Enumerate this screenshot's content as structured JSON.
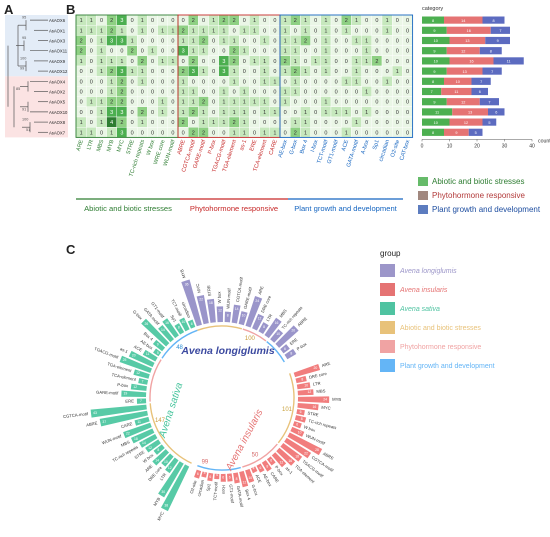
{
  "panel_labels": {
    "a": "A",
    "b": "B",
    "c": "C"
  },
  "tree": {
    "genes": [
      "AsAOX6",
      "AsAOX1",
      "AsAOX3",
      "AsAOX11",
      "AsAOX9",
      "AsAOX12",
      "AsAOX4",
      "AsAOX2",
      "AsAOX5",
      "AsAOX10",
      "AsAOX8",
      "AsAOX7"
    ],
    "bootstrap": [
      "95",
      "95",
      "100",
      "99",
      "85",
      "91",
      "100",
      "51"
    ]
  },
  "heatmap": {
    "columns": [
      "ARE",
      "LTR",
      "MBS",
      "MYB",
      "MYC",
      "STRE",
      "TC-rich repeats",
      "W box",
      "WRE core",
      "WUN-motif",
      "ABRE",
      "CGTCA-motif",
      "GARE-motif",
      "P-box",
      "TGACG-motif",
      "TGA-element",
      "as-1",
      "ERE",
      "TCA-element",
      "CARE",
      "AE-box",
      "G-box",
      "Box 4",
      "I-box",
      "TCT-motif",
      "GT1-motif",
      "ACE",
      "GATA-motif",
      "A-box",
      "Sp1",
      "circadian",
      "O2-site",
      "CAT-box"
    ],
    "colors": {
      "Abiotic and biotic stresses": "#2e7d32",
      "Phytohormone responsive": "#c62828",
      "Plant growth and development": "#1565c0"
    },
    "column_groups": [
      "abiotic",
      "abiotic",
      "abiotic",
      "abiotic",
      "abiotic",
      "abiotic",
      "abiotic",
      "abiotic",
      "abiotic",
      "abiotic",
      "phyto",
      "phyto",
      "phyto",
      "phyto",
      "phyto",
      "phyto",
      "phyto",
      "phyto",
      "phyto",
      "phyto",
      "growth",
      "growth",
      "growth",
      "growth",
      "growth",
      "growth",
      "growth",
      "growth",
      "growth",
      "growth",
      "growth",
      "growth",
      "growth"
    ],
    "rows": [
      [
        1,
        1,
        0,
        2,
        3,
        0,
        1,
        0,
        0,
        0,
        0,
        2,
        0,
        1,
        2,
        2,
        0,
        1,
        0,
        0,
        1,
        2,
        1,
        0,
        1,
        0,
        2,
        1,
        0,
        0,
        1,
        0,
        0
      ],
      [
        1,
        1,
        1,
        2,
        1,
        0,
        1,
        0,
        1,
        1,
        2,
        1,
        1,
        1,
        1,
        0,
        1,
        1,
        0,
        0,
        1,
        0,
        1,
        0,
        1,
        0,
        1,
        0,
        0,
        0,
        1,
        0,
        0
      ],
      [
        2,
        0,
        1,
        3,
        3,
        1,
        0,
        0,
        0,
        0,
        1,
        1,
        2,
        0,
        1,
        1,
        0,
        0,
        1,
        0,
        1,
        1,
        2,
        0,
        1,
        0,
        0,
        1,
        1,
        0,
        0,
        0,
        0
      ],
      [
        2,
        0,
        1,
        0,
        0,
        2,
        0,
        1,
        0,
        0,
        3,
        1,
        1,
        0,
        0,
        2,
        1,
        0,
        0,
        0,
        1,
        1,
        0,
        0,
        1,
        0,
        0,
        0,
        1,
        0,
        0,
        0,
        0
      ],
      [
        1,
        0,
        1,
        1,
        1,
        0,
        2,
        0,
        1,
        1,
        0,
        2,
        0,
        0,
        3,
        2,
        0,
        1,
        1,
        0,
        2,
        1,
        0,
        1,
        1,
        0,
        0,
        1,
        1,
        2,
        0,
        0,
        0
      ],
      [
        0,
        0,
        1,
        2,
        3,
        1,
        1,
        0,
        0,
        0,
        2,
        3,
        1,
        0,
        3,
        1,
        0,
        0,
        1,
        0,
        1,
        2,
        1,
        0,
        1,
        0,
        0,
        1,
        0,
        0,
        0,
        1,
        0
      ],
      [
        0,
        0,
        0,
        1,
        2,
        0,
        1,
        0,
        0,
        0,
        1,
        0,
        0,
        0,
        0,
        1,
        0,
        0,
        1,
        1,
        0,
        1,
        0,
        0,
        0,
        0,
        1,
        1,
        0,
        0,
        1,
        0,
        0
      ],
      [
        0,
        0,
        0,
        1,
        2,
        0,
        0,
        0,
        0,
        0,
        1,
        1,
        0,
        0,
        1,
        0,
        1,
        0,
        0,
        0,
        1,
        1,
        0,
        0,
        0,
        0,
        0,
        0,
        1,
        0,
        0,
        0,
        0
      ],
      [
        0,
        1,
        1,
        2,
        2,
        0,
        0,
        0,
        1,
        0,
        1,
        1,
        2,
        0,
        1,
        1,
        1,
        1,
        1,
        0,
        1,
        0,
        0,
        0,
        1,
        0,
        0,
        0,
        0,
        0,
        0,
        0,
        0
      ],
      [
        0,
        0,
        1,
        3,
        3,
        0,
        2,
        0,
        1,
        0,
        1,
        2,
        1,
        0,
        1,
        1,
        1,
        0,
        1,
        1,
        0,
        0,
        1,
        0,
        1,
        1,
        1,
        0,
        1,
        0,
        0,
        0,
        0
      ],
      [
        1,
        0,
        1,
        4,
        2,
        0,
        1,
        0,
        0,
        0,
        2,
        0,
        1,
        1,
        1,
        2,
        1,
        0,
        0,
        0,
        0,
        1,
        1,
        0,
        0,
        0,
        0,
        1,
        0,
        0,
        0,
        0,
        0
      ],
      [
        1,
        1,
        0,
        1,
        3,
        0,
        0,
        0,
        0,
        0,
        0,
        2,
        2,
        0,
        0,
        1,
        1,
        0,
        1,
        1,
        0,
        2,
        1,
        0,
        0,
        0,
        1,
        0,
        0,
        0,
        0,
        0,
        0
      ]
    ]
  },
  "bar_chart": {
    "legend_title": "category",
    "xlabel": "count",
    "ticks": [
      "0",
      "10",
      "20",
      "30",
      "40"
    ],
    "colors": [
      "#4caf50",
      "#e57373",
      "#5c6bc0"
    ],
    "rows": [
      {
        "values": [
          8,
          14,
          8
        ]
      },
      {
        "values": [
          9,
          16,
          7
        ]
      },
      {
        "values": [
          10,
          13,
          9
        ]
      },
      {
        "values": [
          9,
          12,
          8
        ]
      },
      {
        "values": [
          10,
          16,
          11
        ]
      },
      {
        "values": [
          9,
          13,
          7
        ]
      },
      {
        "values": [
          8,
          10,
          7
        ]
      },
      {
        "values": [
          7,
          11,
          6
        ]
      },
      {
        "values": [
          9,
          12,
          7
        ]
      },
      {
        "values": [
          11,
          13,
          6
        ]
      },
      {
        "values": [
          10,
          12,
          5
        ]
      },
      {
        "values": [
          8,
          9,
          5
        ]
      }
    ]
  },
  "category_legend": [
    {
      "label": "Abiotic and biotic stresses",
      "color": "#66bb6a"
    },
    {
      "label": "Phytohormone responsive",
      "color": "#a1887f"
    },
    {
      "label": "Plant growth and development",
      "color": "#5c7cbf"
    }
  ],
  "category_bar": [
    {
      "label": "Abiotic and biotic stresses",
      "color": "#2e7d32"
    },
    {
      "label": "Phytohormone responsive",
      "color": "#c62828"
    },
    {
      "label": "Plant growth and development",
      "color": "#1565c0"
    }
  ],
  "circular": {
    "legend_title": "group",
    "groups": [
      {
        "label": "Avena longiglumis",
        "color": "#9c96c9",
        "italic": true
      },
      {
        "label": "Avena insularis",
        "color": "#e57373",
        "italic": true
      },
      {
        "label": "Avena sativa",
        "color": "#4fc3a1",
        "italic": true
      },
      {
        "label": "Abiotic and biotic stresses",
        "color": "#e8c27a",
        "italic": false
      },
      {
        "label": "Phytohormone responsive",
        "color": "#f0a3a3",
        "italic": false
      },
      {
        "label": "Plant growth and development",
        "color": "#64b5f6",
        "italic": false
      }
    ],
    "sector_titles": [
      "Avena longiglumis",
      "Avena insularis",
      "Avena sativa"
    ],
    "inner_counts": [
      "100",
      "101",
      "147",
      "50",
      "99",
      "48"
    ],
    "sectors": [
      {
        "species_color": "#8f8ac4",
        "start": -20,
        "end": 60,
        "labels": [
          "MYB",
          "MYC",
          "STRE",
          "W box",
          "WUN-motif",
          "CGTCA-motif",
          "GARE-motif",
          "ARE",
          "DRE core",
          "LTR",
          "MBS",
          "TC-rich repeats",
          "ABRE",
          "ERE",
          "P-box"
        ],
        "values": [
          36,
          22,
          18,
          12,
          8,
          14,
          10,
          24,
          12,
          8,
          16,
          10,
          20,
          6,
          8
        ]
      },
      {
        "species_color": "#ef6f6f",
        "start": 70,
        "end": 200,
        "labels": [
          "ARE",
          "DRE core",
          "LTR",
          "MBS",
          "MYB",
          "MYC",
          "STRE",
          "TC-rich repeats",
          "W box",
          "WUN-motif",
          "ABRE",
          "CGTCA-motif",
          "TGACG-motif",
          "TGA-element",
          "as-1",
          "P-box",
          "CARE",
          "AE-box",
          "ACE",
          "G-box",
          "Box 4",
          "GATA-motif",
          "GT1-motif",
          "I-box",
          "TCT-motif",
          "Sp1",
          "circadian",
          "O2-site"
        ],
        "values": [
          20,
          8,
          10,
          12,
          24,
          16,
          6,
          8,
          6,
          10,
          28,
          22,
          18,
          16,
          12,
          6,
          8,
          6,
          4,
          10,
          12,
          8,
          6,
          6,
          4,
          6,
          4,
          6
        ]
      },
      {
        "species_color": "#45c49c",
        "start": 205,
        "end": 340,
        "labels": [
          "MYC",
          "MYB",
          "LTR",
          "DRE core",
          "ARE",
          "W box",
          "STRE",
          "TC-rich repeats",
          "MBS",
          "WUN-motif",
          "CARE",
          "ABRE",
          "CGTCA-motif",
          "ERE",
          "GARE-motif",
          "P-box",
          "TCA-element",
          "TGA-element",
          "TGACG-motif",
          "as-1",
          "ACE",
          "AE-box",
          "Box 4",
          "G-box",
          "GATA-motif",
          "GT1-motif",
          "Sp1",
          "TCT-motif",
          "circadian"
        ],
        "values": [
          38,
          30,
          12,
          10,
          14,
          8,
          12,
          14,
          18,
          22,
          11,
          37,
          43,
          7,
          19,
          12,
          7,
          12,
          25,
          20,
          11,
          5,
          9,
          26,
          14,
          16,
          8,
          10,
          6
        ]
      }
    ]
  }
}
